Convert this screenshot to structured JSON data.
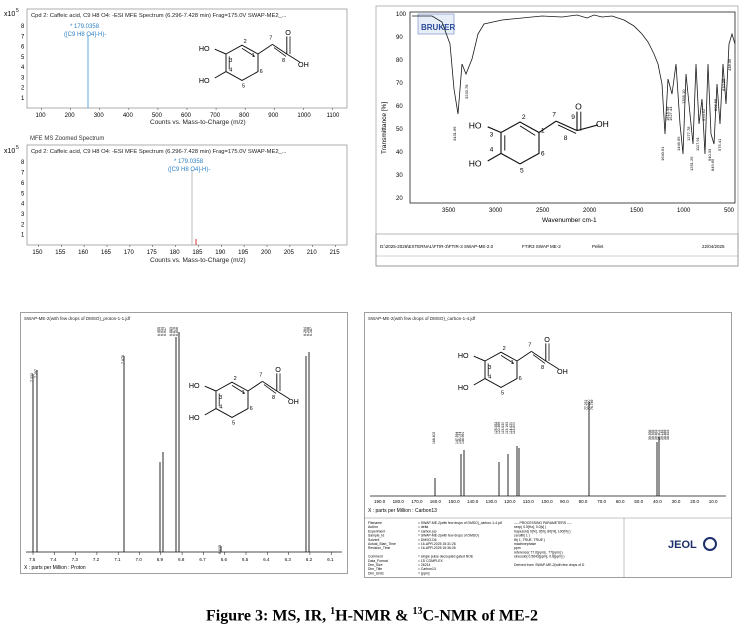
{
  "figure": {
    "caption_prefix": "Figure 3: MS, IR, ",
    "caption_sup1": "1",
    "caption_mid": "H-NMR & ",
    "caption_sup2": "13",
    "caption_end": "C-NMR of ME-2"
  },
  "ms_top": {
    "header": "Cpd 2: Caffeic acid, C9 H8 O4: -ESI MFE Spectrum (6.296-7.428 min) Frag=175.0V SWAP-ME2_...",
    "scale_label": "x10",
    "scale_exp": "5",
    "peak_label": "* 179.0358",
    "peak_formula": "([C9 H8 O4]-H)-",
    "xlabel": "Counts vs. Mass-to-Charge (m/z)",
    "xticks": [
      "100",
      "200",
      "300",
      "400",
      "500",
      "600",
      "700",
      "800",
      "900",
      "1000",
      "1100"
    ],
    "yticks": [
      "1",
      "2",
      "3",
      "4",
      "5",
      "6",
      "7",
      "8"
    ],
    "section_label": "MFE MS Zoomed Spectrum"
  },
  "ms_bottom": {
    "header": "Cpd 2: Caffeic acid, C9 H8 O4: -ESI MFE Spectrum (6.296-7.428 min) Frag=175.0V SWAP-ME2_...",
    "scale_label": "x10",
    "scale_exp": "5",
    "peak_label": "* 179.0358",
    "peak_formula": "([C9 H8 O4]-H)-",
    "xlabel": "Counts vs. Mass-to-Charge (m/z)",
    "xticks": [
      "150",
      "155",
      "160",
      "165",
      "170",
      "175",
      "180",
      "185",
      "190",
      "195",
      "200",
      "205",
      "210",
      "215"
    ],
    "yticks": [
      "1",
      "2",
      "3",
      "4",
      "5",
      "6",
      "7",
      "8"
    ]
  },
  "structure": {
    "ho_top": "HO",
    "ho_bottom": "HO",
    "oh": "OH",
    "o": "O",
    "n1": "1",
    "n2": "2",
    "n3": "3",
    "n4": "4",
    "n5": "5",
    "n6": "6",
    "n7": "7",
    "n8": "8",
    "n9": "9"
  },
  "ir": {
    "brand": "BRUKER",
    "ylabel": "Transmittance [%]",
    "xlabel": "Wavenumber cm-1",
    "yticks": [
      "20",
      "30",
      "40",
      "50",
      "60",
      "70",
      "80",
      "90",
      "100"
    ],
    "xticks": [
      "3500",
      "3000",
      "2500",
      "2000",
      "1500",
      "1000",
      "500"
    ],
    "peak_labels": [
      "3431.69",
      "3233.78",
      "1640.61",
      "1615.98",
      "1527.44",
      "1449.95",
      "1355.10",
      "1277.78",
      "1251.26",
      "1117.91",
      "973.62",
      "940.33",
      "849.65",
      "806.55",
      "575.41",
      "810.05",
      "438.05"
    ],
    "footer_path": "D:\\2025-2026\\EXTERNAL\\FTIR-3\\FTIR-3 SWAP-ME-2.0",
    "footer_name": "FTIR3 SWAP ME-2",
    "footer_type": "Pellet",
    "footer_date": "22/04/2025"
  },
  "hnmr": {
    "header": "SWAP-ME-2(with few drops of DMSO)_proton-1-1.jdf",
    "xlabel": "X : parts per Million : Proton",
    "xticks": [
      "7.5",
      "7.4",
      "7.3",
      "7.2",
      "7.1",
      "7.0",
      "6.9",
      "6.8",
      "6.7",
      "6.6",
      "6.5",
      "6.4",
      "6.3",
      "6.2",
      "6.1"
    ],
    "peak_labels": [
      "7.333",
      "7.297",
      "7.076",
      "6.955",
      "6.934",
      "6.917",
      "6.883",
      "6.870",
      "6.856",
      "6.639",
      "6.264",
      "6.208",
      "6.187"
    ]
  },
  "cnmr": {
    "header": "SWAP-ME-2(with few drops of DMSO)_carbon-1-4.jdf",
    "xlabel": "X : parts per Million : Carbon13",
    "xticks": [
      "190.0",
      "180.0",
      "170.0",
      "160.0",
      "150.0",
      "140.0",
      "130.0",
      "120.0",
      "110.0",
      "100.0",
      "90.0",
      "80.0",
      "70.0",
      "60.0",
      "50.0",
      "40.0",
      "30.0",
      "20.0",
      "10.0"
    ],
    "peak_labels": [
      "168.402",
      "147.594",
      "145.074",
      "144.991",
      "125.832",
      "120.895",
      "115.630",
      "115.163",
      "114.620",
      "113.600",
      "77.251",
      "77.000",
      "76.749",
      "39.936",
      "39.935",
      "39.653",
      "39.401",
      "39.143",
      "38.889",
      "38.616"
    ],
    "brand": "JEOL",
    "info_left": [
      "Filename",
      "Author",
      "Experiment",
      "Sample_Id",
      "Solvent",
      "Actual_Start_Time",
      "Revision_Time",
      "",
      "Comment",
      "Data_Format",
      "Dim_Size",
      "Dim_Title",
      "Dim_Units"
    ],
    "info_mid": [
      "= SWAP-ME-2(with few drops of DMSO)_carbon-1-4.jdf",
      "= delta",
      "= carbon.jxp",
      "= SWAP-ME-2(with few drops of DMSO)",
      "= DMSO-D6",
      "= 16-APR-2025 15:31:26",
      "= 16-APR-2025 15:36:26",
      "",
      "= single pulse decoupled gated NOE",
      "= 1D COMPLEX",
      "= 26214",
      "= Carbon13",
      "= [ppm]"
    ],
    "info_right": [
      "---- PROCESSING PARAMETERS ----",
      "sexp( 0.5[Hz], 0.0[s] )",
      "trapezoid( 0[%], 0[%], 80[%], 100[%] )",
      "zerofill( 1 )",
      "fft( 1, TRUE, TRUE )",
      "machinephase",
      "ppm",
      "reference( 77.0[ppm] , 77[ppm] )",
      "sinusoid( 0.5643[ppm], 0.8[ppm] )",
      "",
      "Derived from: SWAP-ME-2(with few drops of D"
    ]
  }
}
